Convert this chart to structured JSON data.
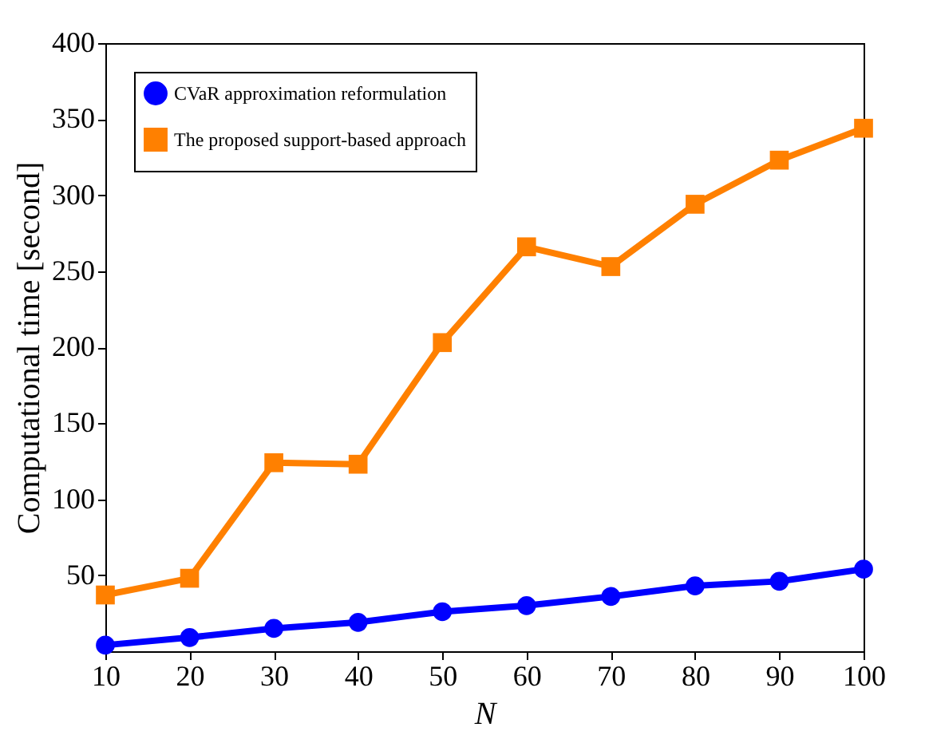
{
  "chart_data": {
    "type": "line",
    "xlabel": "N",
    "ylabel": "Computational time [second]",
    "x": [
      10,
      20,
      30,
      40,
      50,
      60,
      70,
      80,
      90,
      100
    ],
    "series": [
      {
        "name": "CVaR approximation reformulation",
        "color": "#0000ff",
        "marker": "circle",
        "values": [
          4,
          9,
          15,
          19,
          26,
          30,
          36,
          43,
          46,
          54
        ]
      },
      {
        "name": "The proposed support-based approach",
        "color": "#ff8000",
        "marker": "square",
        "values": [
          37,
          48,
          124,
          123,
          203,
          266,
          253,
          294,
          323,
          344
        ]
      }
    ],
    "xlim": [
      10,
      100
    ],
    "xticks": [
      10,
      20,
      30,
      40,
      50,
      60,
      70,
      80,
      90,
      100
    ],
    "ylim": [
      0,
      400
    ],
    "yticks": [
      50,
      100,
      150,
      200,
      250,
      300,
      350,
      400
    ],
    "grid": false,
    "legend": "top left",
    "line_style": "solid"
  }
}
